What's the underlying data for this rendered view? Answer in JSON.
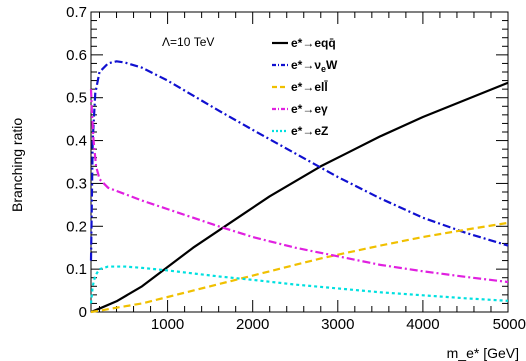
{
  "chart_data": {
    "type": "line",
    "ylabel": "Branching ratio",
    "xlabel": "m_e* [GeV]",
    "annotation": "Λ=10 TeV",
    "xlim": [
      100,
      5000
    ],
    "ylim": [
      0,
      0.7
    ],
    "x_ticks": [
      1000,
      2000,
      3000,
      4000,
      5000
    ],
    "y_ticks": [
      0,
      0.1,
      0.2,
      0.3,
      0.4,
      0.5,
      0.6,
      0.7
    ],
    "y_tick_labels": [
      "0",
      "0.1",
      "0.2",
      "0.3",
      "0.4",
      "0.5",
      "0.6",
      "0.7"
    ],
    "x_tick_labels": [
      "1000",
      "2000",
      "3000",
      "4000",
      "5000"
    ],
    "legend_position": "top-right",
    "grid": false,
    "series": [
      {
        "name": "e*→eqq̄",
        "legend_main": "e*→eq",
        "legend_tail": "q̄",
        "color": "#000000",
        "dash": "",
        "x": [
          100,
          200,
          400,
          700,
          1000,
          1300,
          1600,
          1900,
          2200,
          2500,
          2800,
          3100,
          3500,
          4000,
          4500,
          5000
        ],
        "y": [
          0.0,
          0.008,
          0.025,
          0.06,
          0.105,
          0.15,
          0.19,
          0.23,
          0.27,
          0.305,
          0.34,
          0.37,
          0.41,
          0.455,
          0.495,
          0.535
        ]
      },
      {
        "name": "e*→ν_eW",
        "legend_main": "e*→ν",
        "legend_sub": "e",
        "legend_tail": "W",
        "color": "#1010d0",
        "dash": "8,3,2,3",
        "x": [
          100,
          120,
          150,
          200,
          300,
          400,
          500,
          700,
          1000,
          1300,
          1600,
          2000,
          2500,
          3000,
          3500,
          4000,
          4500,
          5000
        ],
        "y": [
          0.12,
          0.4,
          0.51,
          0.56,
          0.58,
          0.585,
          0.582,
          0.57,
          0.54,
          0.505,
          0.47,
          0.425,
          0.37,
          0.315,
          0.265,
          0.22,
          0.185,
          0.155
        ]
      },
      {
        "name": "e*→ell̄",
        "legend_main": "e*→el",
        "legend_tail": "l̄",
        "color": "#f0c000",
        "dash": "7,4",
        "x": [
          100,
          200,
          400,
          700,
          1000,
          1300,
          1600,
          1900,
          2200,
          2500,
          2800,
          3100,
          3500,
          4000,
          4500,
          5000
        ],
        "y": [
          0.0,
          0.003,
          0.01,
          0.02,
          0.035,
          0.05,
          0.065,
          0.08,
          0.095,
          0.11,
          0.125,
          0.138,
          0.155,
          0.175,
          0.192,
          0.208
        ]
      },
      {
        "name": "e*→eγ",
        "legend_main": "e*→eγ",
        "color": "#e020e0",
        "dash": "8,3,2,3",
        "x": [
          100,
          110,
          130,
          160,
          200,
          300,
          500,
          700,
          1000,
          1300,
          1600,
          2000,
          2500,
          3000,
          3500,
          4000,
          4500,
          5000
        ],
        "y": [
          0.52,
          0.47,
          0.4,
          0.34,
          0.31,
          0.29,
          0.275,
          0.26,
          0.24,
          0.22,
          0.2,
          0.175,
          0.15,
          0.13,
          0.11,
          0.095,
          0.082,
          0.07
        ]
      },
      {
        "name": "e*→eZ",
        "legend_main": "e*→eZ",
        "color": "#00e0e0",
        "dash": "3,3",
        "x": [
          100,
          120,
          150,
          200,
          300,
          500,
          700,
          1000,
          1300,
          1600,
          2000,
          2500,
          3000,
          3500,
          4000,
          4500,
          5000
        ],
        "y": [
          0.02,
          0.06,
          0.085,
          0.1,
          0.106,
          0.106,
          0.103,
          0.097,
          0.09,
          0.083,
          0.075,
          0.064,
          0.055,
          0.046,
          0.039,
          0.032,
          0.026
        ]
      }
    ]
  }
}
